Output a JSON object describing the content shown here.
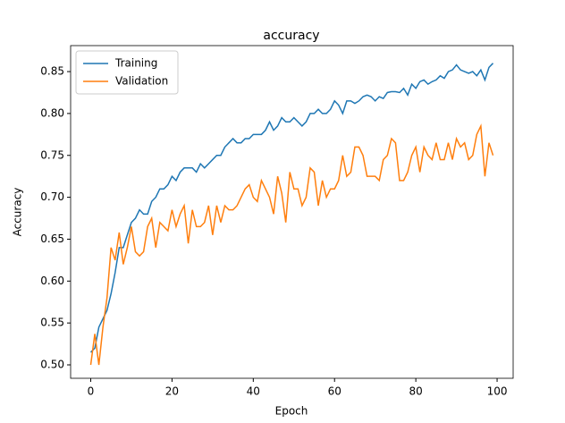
{
  "chart_data": {
    "type": "line",
    "title": "accuracy",
    "xlabel": "Epoch",
    "ylabel": "Accuracy",
    "x": [
      0,
      1,
      2,
      3,
      4,
      5,
      6,
      7,
      8,
      9,
      10,
      11,
      12,
      13,
      14,
      15,
      16,
      17,
      18,
      19,
      20,
      21,
      22,
      23,
      24,
      25,
      26,
      27,
      28,
      29,
      30,
      31,
      32,
      33,
      34,
      35,
      36,
      37,
      38,
      39,
      40,
      41,
      42,
      43,
      44,
      45,
      46,
      47,
      48,
      49,
      50,
      51,
      52,
      53,
      54,
      55,
      56,
      57,
      58,
      59,
      60,
      61,
      62,
      63,
      64,
      65,
      66,
      67,
      68,
      69,
      70,
      71,
      72,
      73,
      74,
      75,
      76,
      77,
      78,
      79,
      80,
      81,
      82,
      83,
      84,
      85,
      86,
      87,
      88,
      89,
      90,
      91,
      92,
      93,
      94,
      95,
      96,
      97,
      98,
      99
    ],
    "series": [
      {
        "name": "Training",
        "color": "#1f77b4",
        "values": [
          0.515,
          0.52,
          0.545,
          0.555,
          0.565,
          0.585,
          0.61,
          0.64,
          0.64,
          0.655,
          0.67,
          0.675,
          0.685,
          0.68,
          0.68,
          0.695,
          0.7,
          0.71,
          0.71,
          0.715,
          0.725,
          0.72,
          0.73,
          0.735,
          0.735,
          0.735,
          0.73,
          0.74,
          0.735,
          0.74,
          0.745,
          0.75,
          0.75,
          0.76,
          0.765,
          0.77,
          0.765,
          0.765,
          0.77,
          0.77,
          0.775,
          0.775,
          0.775,
          0.78,
          0.79,
          0.78,
          0.785,
          0.795,
          0.79,
          0.79,
          0.795,
          0.79,
          0.785,
          0.79,
          0.8,
          0.8,
          0.805,
          0.8,
          0.8,
          0.805,
          0.815,
          0.81,
          0.8,
          0.815,
          0.815,
          0.812,
          0.815,
          0.82,
          0.822,
          0.82,
          0.815,
          0.82,
          0.818,
          0.825,
          0.826,
          0.826,
          0.825,
          0.83,
          0.822,
          0.835,
          0.83,
          0.838,
          0.84,
          0.835,
          0.838,
          0.84,
          0.845,
          0.842,
          0.85,
          0.852,
          0.858,
          0.852,
          0.85,
          0.848,
          0.85,
          0.845,
          0.852,
          0.84,
          0.855,
          0.86
        ]
      },
      {
        "name": "Validation",
        "color": "#ff7f0e",
        "values": [
          0.5,
          0.537,
          0.5,
          0.545,
          0.58,
          0.64,
          0.625,
          0.658,
          0.62,
          0.64,
          0.665,
          0.635,
          0.63,
          0.635,
          0.665,
          0.675,
          0.64,
          0.67,
          0.665,
          0.66,
          0.685,
          0.665,
          0.68,
          0.69,
          0.645,
          0.685,
          0.665,
          0.665,
          0.67,
          0.69,
          0.655,
          0.69,
          0.67,
          0.69,
          0.685,
          0.685,
          0.69,
          0.7,
          0.71,
          0.715,
          0.7,
          0.695,
          0.72,
          0.71,
          0.7,
          0.68,
          0.725,
          0.705,
          0.67,
          0.73,
          0.71,
          0.71,
          0.69,
          0.7,
          0.735,
          0.73,
          0.69,
          0.72,
          0.7,
          0.71,
          0.71,
          0.72,
          0.75,
          0.725,
          0.73,
          0.76,
          0.76,
          0.75,
          0.725,
          0.725,
          0.725,
          0.72,
          0.745,
          0.75,
          0.77,
          0.765,
          0.72,
          0.72,
          0.73,
          0.75,
          0.76,
          0.73,
          0.76,
          0.75,
          0.745,
          0.765,
          0.745,
          0.745,
          0.765,
          0.745,
          0.77,
          0.76,
          0.765,
          0.745,
          0.75,
          0.775,
          0.785,
          0.725,
          0.765,
          0.75
        ]
      }
    ],
    "xlim": [
      -4.95,
      103.95
    ],
    "xticks": [
      0,
      20,
      40,
      60,
      80,
      100
    ],
    "ylim": [
      0.484,
      0.881
    ],
    "yticks": [
      {
        "value": 0.5,
        "label": "0.50"
      },
      {
        "value": 0.55,
        "label": "0.55"
      },
      {
        "value": 0.6,
        "label": "0.60"
      },
      {
        "value": 0.65,
        "label": "0.65"
      },
      {
        "value": 0.7,
        "label": "0.70"
      },
      {
        "value": 0.75,
        "label": "0.75"
      },
      {
        "value": 0.8,
        "label": "0.80"
      },
      {
        "value": 0.85,
        "label": "0.85"
      }
    ],
    "legend": "upper left",
    "grid": false
  }
}
